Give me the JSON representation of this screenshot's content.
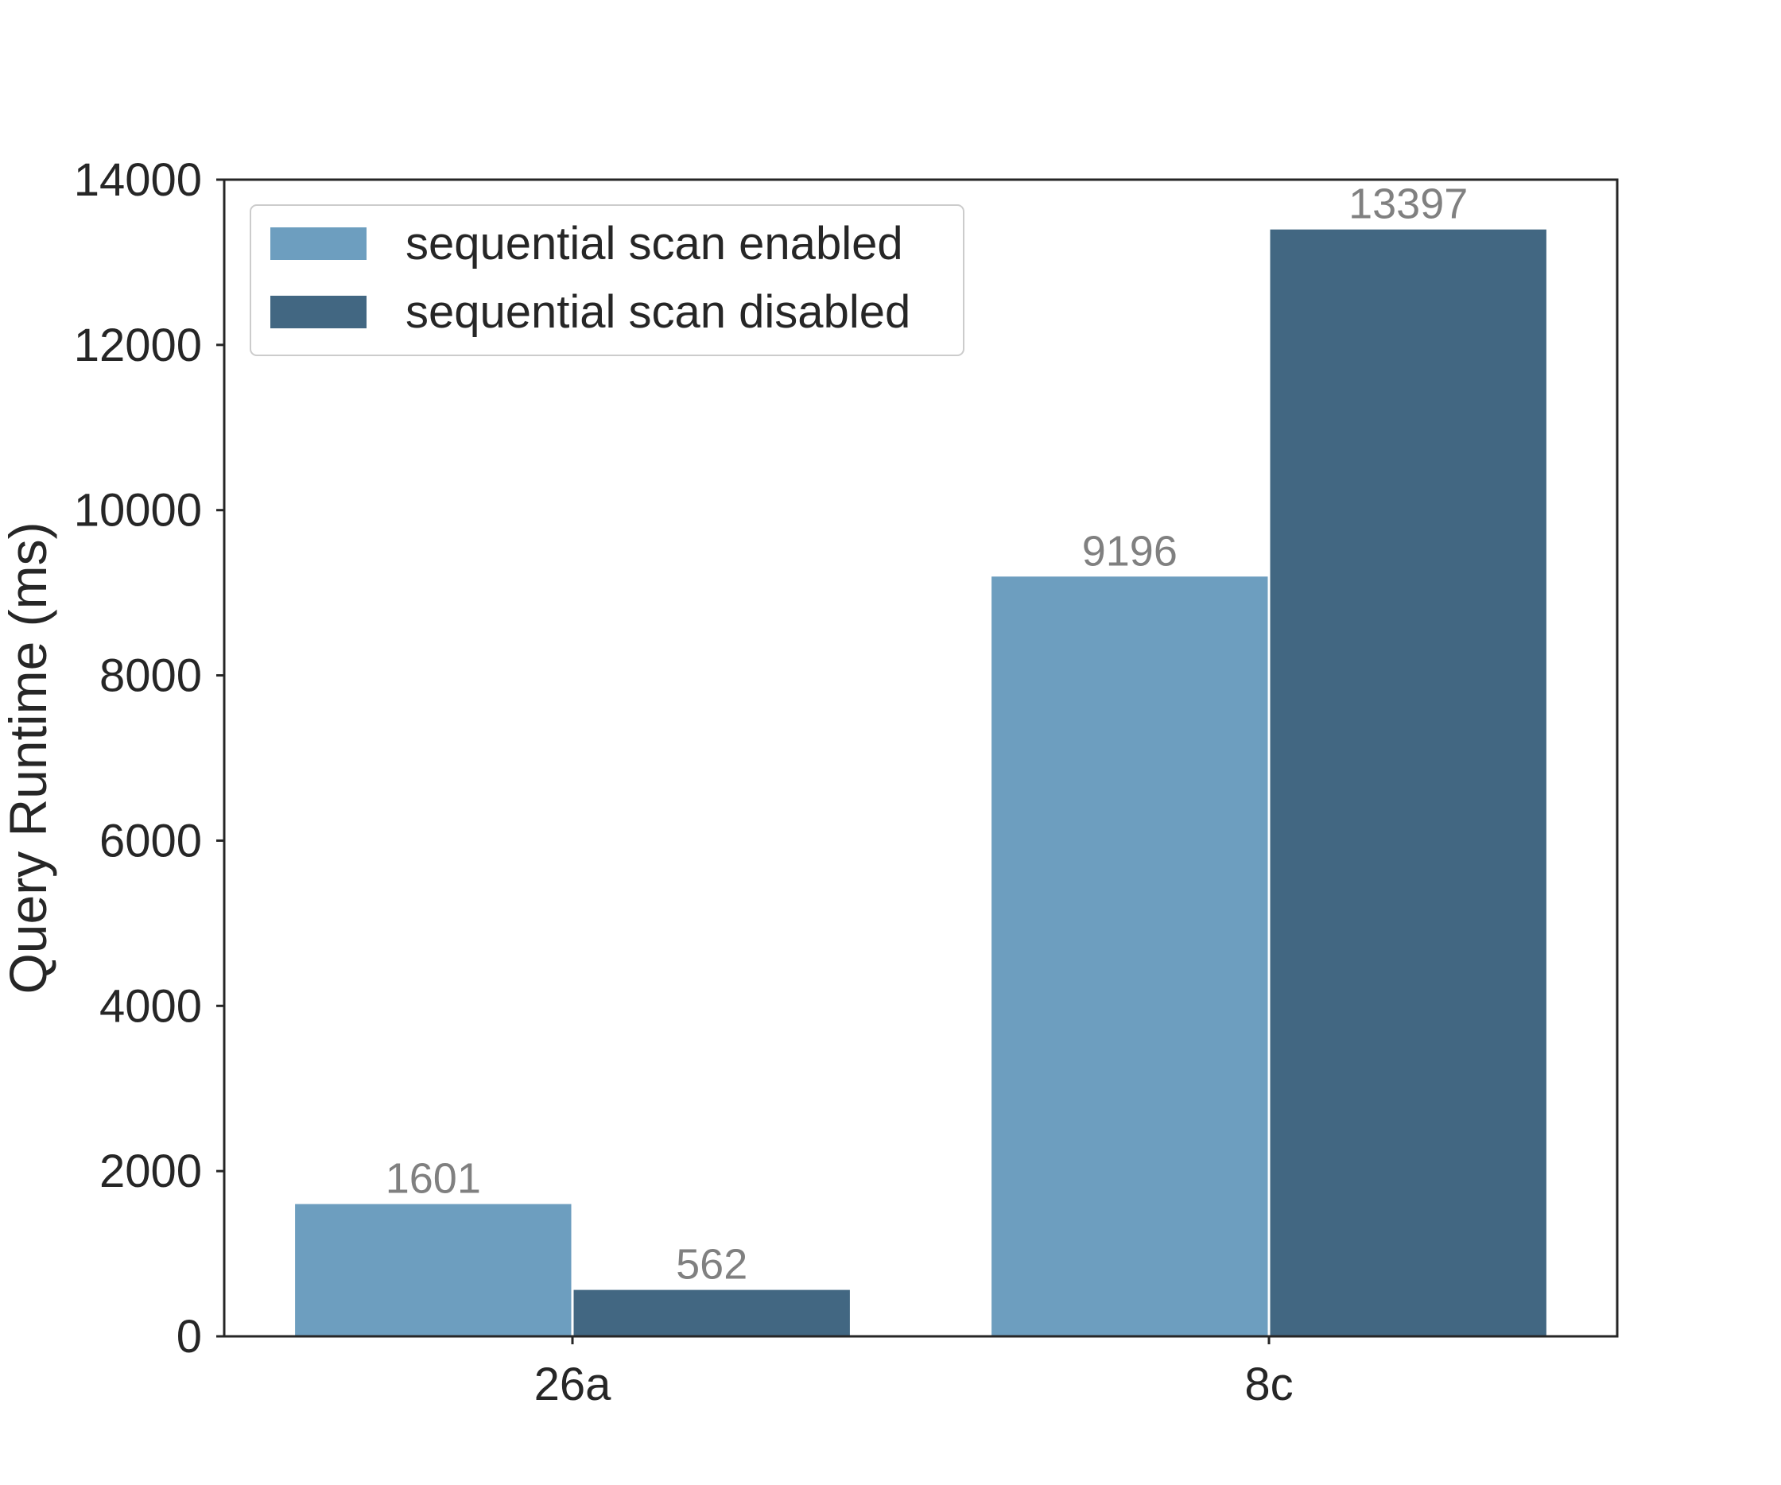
{
  "chart_data": {
    "type": "bar",
    "title": "",
    "xlabel": "",
    "ylabel": "Query Runtime (ms)",
    "categories": [
      "26a",
      "8c"
    ],
    "series": [
      {
        "name": "sequential scan enabled",
        "values": [
          1601,
          9196
        ],
        "color": "#6d9ebf"
      },
      {
        "name": "sequential scan disabled",
        "values": [
          562,
          13397
        ],
        "color": "#426782"
      }
    ],
    "ylim": [
      0,
      14000
    ],
    "yticks": [
      0,
      2000,
      4000,
      6000,
      8000,
      10000,
      12000,
      14000
    ],
    "data_labels": [
      [
        "1601",
        "9196"
      ],
      [
        "562",
        "13397"
      ]
    ],
    "grid": false,
    "legend_position": "top-left"
  }
}
